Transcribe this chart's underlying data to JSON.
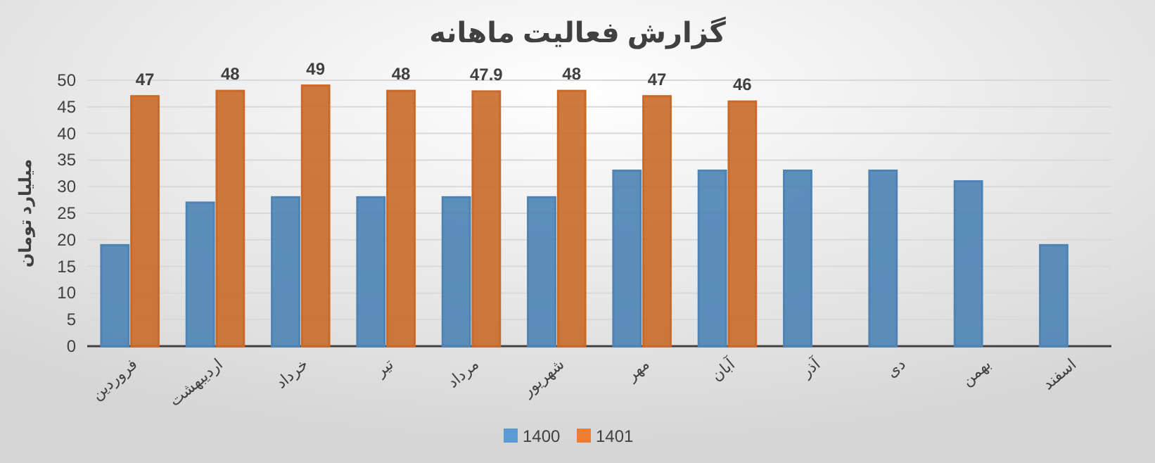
{
  "chart_data": {
    "type": "bar",
    "title": "گزارش فعالیت ماهانه",
    "ylabel": "میلیارد تومان",
    "categories": [
      "فروردین",
      "اردیبهشت",
      "خرداد",
      "تیر",
      "مرداد",
      "شهریور",
      "مهر",
      "آبان",
      "آذر",
      "دی",
      "بهمن",
      "اسفند"
    ],
    "series": [
      {
        "name": "1400",
        "color": "#5b9bd5",
        "values": [
          19,
          27,
          28,
          28,
          28,
          28,
          33,
          33,
          33,
          33,
          31,
          19
        ]
      },
      {
        "name": "1401",
        "color": "#ed7d31",
        "values": [
          47,
          48,
          49,
          48,
          47.9,
          48,
          47,
          46,
          null,
          null,
          null,
          null
        ],
        "value_labels": [
          "47",
          "48",
          "49",
          "48",
          "47.9",
          "48",
          "47",
          "46",
          null,
          null,
          null,
          null
        ]
      }
    ],
    "ylim": [
      0,
      50
    ],
    "yticks": [
      0,
      5,
      10,
      15,
      20,
      25,
      30,
      35,
      40,
      45,
      50
    ],
    "grid": "y",
    "legend": "bottom"
  }
}
